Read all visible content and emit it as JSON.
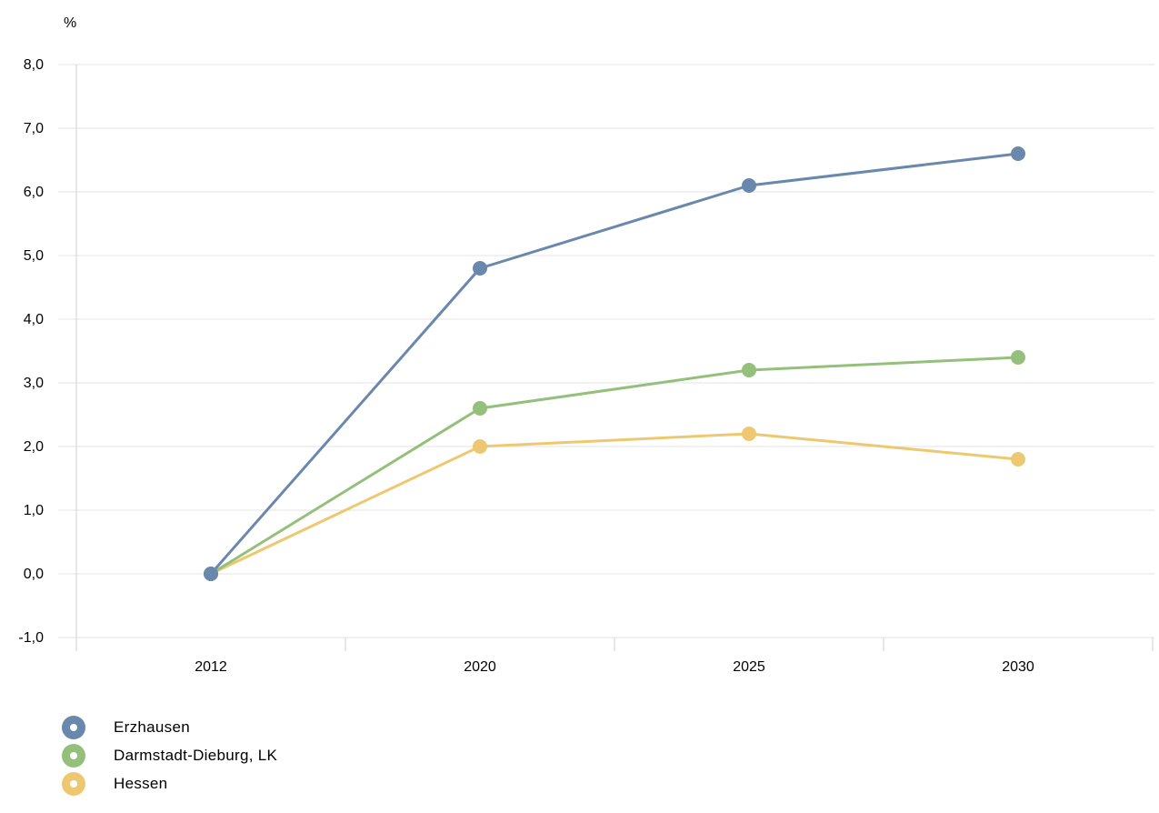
{
  "chart_data": {
    "type": "line",
    "unit_label": "%",
    "categories": [
      "2012",
      "2020",
      "2025",
      "2030"
    ],
    "ylim": [
      -1.0,
      8.0
    ],
    "yticks": [
      "-1,0",
      "0,0",
      "1,0",
      "2,0",
      "3,0",
      "4,0",
      "5,0",
      "6,0",
      "7,0",
      "8,0"
    ],
    "ytick_values": [
      -1,
      0,
      1,
      2,
      3,
      4,
      5,
      6,
      7,
      8
    ],
    "grid": true,
    "legend_position": "bottom-left",
    "series": [
      {
        "name": "Erzhausen",
        "color": "#6a88ad",
        "values": [
          0.0,
          4.8,
          6.1,
          6.6
        ]
      },
      {
        "name": "Darmstadt-Dieburg, LK",
        "color": "#95c07b",
        "values": [
          0.0,
          2.6,
          3.2,
          3.4
        ]
      },
      {
        "name": "Hessen",
        "color": "#eec870",
        "values": [
          0.0,
          2.0,
          2.2,
          1.8
        ]
      }
    ]
  }
}
